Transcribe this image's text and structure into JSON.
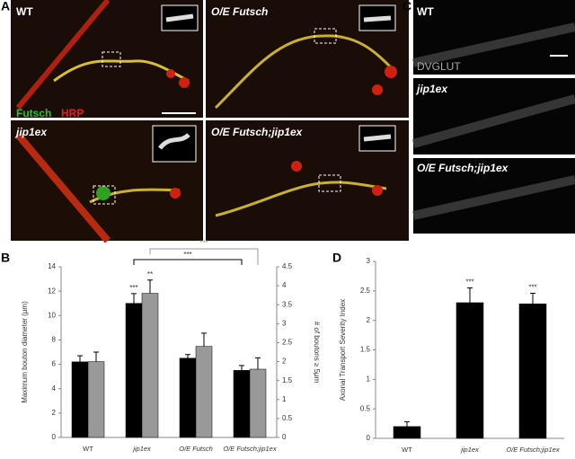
{
  "panels": {
    "A": {
      "label": "A",
      "images": [
        "WT",
        "O/E Futsch",
        "jip1ex",
        "O/E Futsch;jip1ex"
      ],
      "legend": [
        "Futsch",
        "HRP"
      ]
    },
    "C": {
      "label": "C",
      "images": [
        "WT",
        "jip1ex",
        "O/E Futsch;jip1ex"
      ],
      "stain": "DVGLUT"
    },
    "B": {
      "label": "B"
    },
    "D": {
      "label": "D"
    }
  },
  "chart_data": [
    {
      "type": "bar",
      "categories": [
        "WT",
        "jip1ex",
        "O/E Futsch",
        "O/E Futsch;jip1ex"
      ],
      "y_label": "Maximum bouton diameter (μm)",
      "y2_label": "# of boutons ≥ 5μm",
      "ylim": [
        0,
        14
      ],
      "yticks": [
        0,
        2,
        4,
        6,
        8,
        10,
        12,
        14
      ],
      "y2lim": [
        0,
        4.5
      ],
      "y2ticks": [
        0,
        0.5,
        1,
        1.5,
        2,
        2.5,
        3,
        3.5,
        4,
        4.5
      ],
      "series": [
        {
          "color": "#000000",
          "values": [
            6.2,
            11.0,
            6.5,
            5.5
          ],
          "errors": [
            0.5,
            0.8,
            0.3,
            0.4
          ]
        },
        {
          "color": "#999999",
          "axis": "y2",
          "values": [
            2.0,
            3.8,
            2.4,
            1.8
          ],
          "errors": [
            0.25,
            0.35,
            0.35,
            0.3
          ]
        }
      ],
      "annotations": [
        "***",
        "**",
        "***",
        "***"
      ]
    },
    {
      "type": "bar",
      "categories": [
        "WT",
        "jip1ex",
        "O/E Futsch;jip1ex"
      ],
      "y_label": "Axonal Transport Severity Index",
      "ylim": [
        0,
        3
      ],
      "yticks": [
        0,
        0.5,
        1,
        1.5,
        2,
        2.5,
        3
      ],
      "series": [
        {
          "color": "#000000",
          "values": [
            0.2,
            2.3,
            2.28
          ],
          "errors": [
            0.08,
            0.25,
            0.18
          ]
        }
      ],
      "annotations": [
        "***",
        "***"
      ]
    }
  ]
}
